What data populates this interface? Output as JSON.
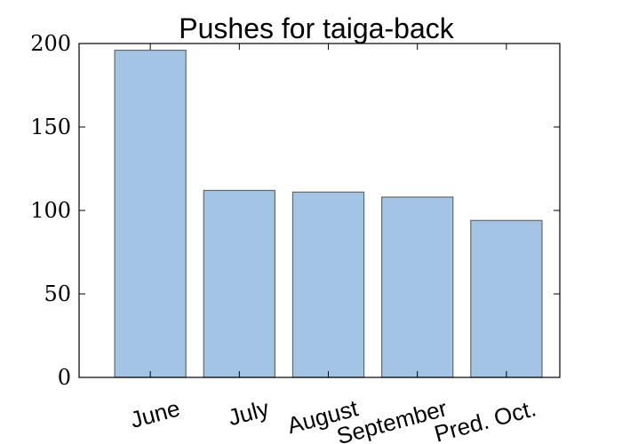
{
  "chart_data": {
    "type": "bar",
    "title": "Pushes for taiga-back",
    "categories": [
      "June",
      "July",
      "August",
      "September",
      "Pred. Oct."
    ],
    "values": [
      196,
      112,
      111,
      108,
      94
    ],
    "ylim": [
      0,
      200
    ],
    "yticks": [
      0,
      50,
      100,
      150,
      200
    ],
    "xlabel": "",
    "ylabel": "",
    "grid": false,
    "bar_color": "#a3c4e4",
    "bar_edge_color": "#5f6a72"
  }
}
